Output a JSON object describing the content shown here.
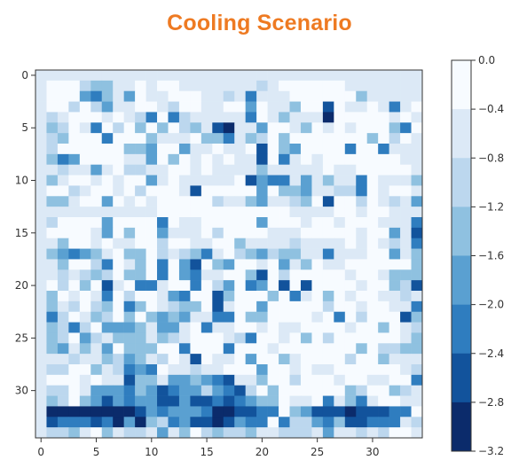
{
  "page": {
    "background": "#ffffff"
  },
  "header": {
    "title": "Cooling Scenario",
    "title_color": "#ee7a22"
  },
  "chart_data": {
    "type": "heatmap",
    "title": "Cooling Scenario",
    "xlabel": "",
    "ylabel": "",
    "x_ticks": [
      "0",
      "5",
      "10",
      "15",
      "20",
      "25",
      "30"
    ],
    "y_ticks": [
      "0",
      "5",
      "10",
      "15",
      "20",
      "25",
      "30"
    ],
    "xlim": [
      -0.5,
      34.5
    ],
    "ylim": [
      -0.5,
      34.5
    ],
    "origin": "upper",
    "grid": false,
    "colorbar": {
      "ticks": [
        "0.0",
        "-0.4",
        "-0.8",
        "-1.2",
        "-1.6",
        "-2.0",
        "-2.4",
        "-2.8",
        "-3.2"
      ],
      "range": [
        -3.2,
        0.0
      ],
      "levels": 8,
      "colors": [
        "#f7fbff",
        "#dce9f6",
        "#bcd7ee",
        "#8fc1e0",
        "#5aa0d1",
        "#2f7dbf",
        "#12539c",
        "#0b2b6b"
      ]
    },
    "rows": [
      "11111111111111111111111111111111111",
      "10002331101001111111210000001111111",
      "10004531401100011215111000000311111",
      "10020241100120011004011300601101510",
      "12100010125052111115013111700000101",
      "13201502030302316711400130101000350",
      "12300050003111033513203000000030201",
      "12000000334004110110603400005005111",
      "13540000114030101011605101000000011",
      "11211410221100101111311111011000001",
      "13100101004101111106455141311501113",
      "10021001020001600000403341122501001",
      "13310040101000002113411230600201214",
      "11111111111000000000000111100100111",
      "12000040000501100000400010010001115",
      "10000140300411102000011100000100416",
      "11300101100200110031111211110101215",
      "13454310330212351023423311511100413",
      "11300250130504603400104130110000003",
      "11212320330504511003602000001001333",
      "10203061055100502405406060000100326",
      "13010150200145006300030510301001121",
      "13120230530123306100400000200100115",
      "15201320303434115503300001050200063",
      "13252044431441051100101100001003012",
      "13204213331321000125001030200000013",
      "13413140333005000500010000000302233",
      "11121132431201601104003100002003111",
      "12200312545011211000400101100000012",
      "10001011633144345611300200010011005",
      "12201444534654424562030000003200321",
      "13203464544664665654330110513510011",
      "17777777764544457766550346667666550",
      "16555657473254667645505224536655512",
      "12231031221413023223112221411212001"
    ]
  }
}
